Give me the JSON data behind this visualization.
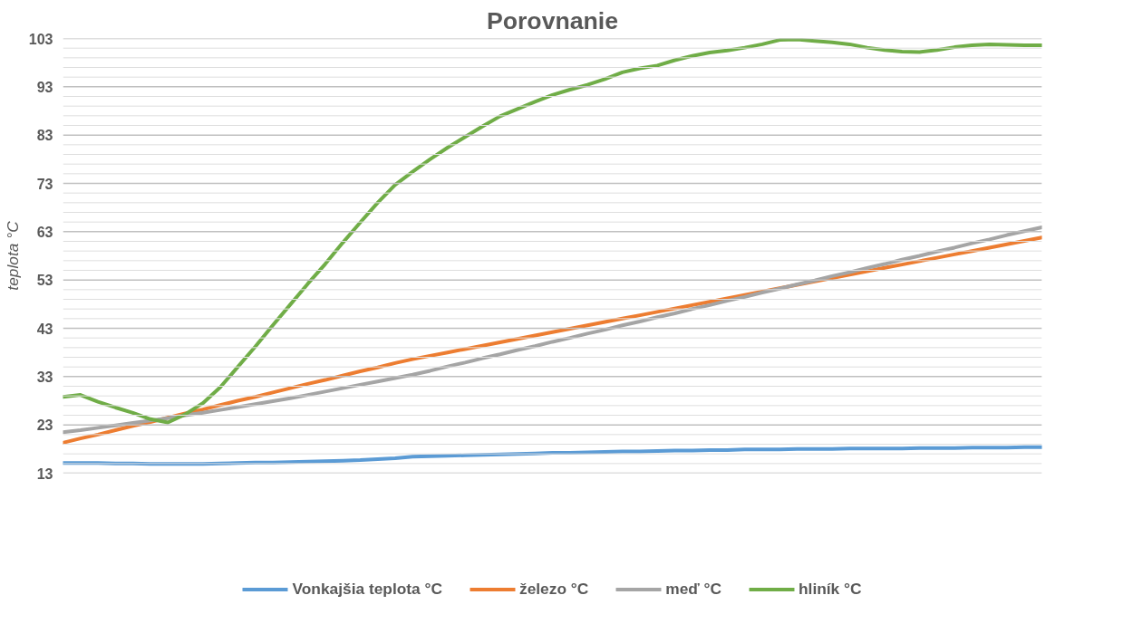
{
  "chart_data": {
    "type": "line",
    "title": "Porovnanie",
    "ylabel": "teplota °C",
    "categories": [
      null,
      null,
      null,
      null,
      null,
      null,
      null,
      null,
      null,
      null,
      null,
      null,
      null,
      null,
      null,
      null,
      null,
      null,
      null,
      null,
      null,
      null,
      null,
      null,
      null,
      null,
      null,
      null,
      null,
      null,
      null,
      null,
      null,
      null,
      null,
      null,
      null,
      null,
      null,
      null,
      null,
      null,
      null,
      null,
      null,
      null,
      null,
      null,
      null,
      null,
      null,
      null,
      null,
      null,
      null,
      null,
      null
    ],
    "series": [
      {
        "name": "Vonkajšia teplota °C",
        "color": "#5b9bd5",
        "values": [
          15.1,
          15.1,
          15.1,
          15.0,
          15.0,
          14.9,
          14.9,
          14.9,
          14.9,
          15.0,
          15.1,
          15.2,
          15.2,
          15.3,
          15.4,
          15.5,
          15.6,
          15.7,
          15.9,
          16.1,
          16.4,
          16.5,
          16.6,
          16.7,
          16.8,
          16.9,
          17.0,
          17.1,
          17.2,
          17.2,
          17.3,
          17.4,
          17.5,
          17.5,
          17.6,
          17.7,
          17.7,
          17.8,
          17.8,
          17.9,
          17.9,
          17.9,
          18.0,
          18.0,
          18.0,
          18.1,
          18.1,
          18.1,
          18.1,
          18.2,
          18.2,
          18.2,
          18.3,
          18.3,
          18.3,
          18.4,
          18.4
        ]
      },
      {
        "name": "železo °C",
        "color": "#ed7d31",
        "values": [
          19.3,
          20.2,
          21.0,
          21.9,
          22.8,
          23.6,
          24.5,
          25.4,
          26.2,
          27.1,
          28.0,
          28.8,
          29.7,
          30.6,
          31.5,
          32.3,
          33.2,
          34.1,
          34.9,
          35.8,
          36.6,
          37.3,
          38.0,
          38.7,
          39.4,
          40.1,
          40.8,
          41.5,
          42.2,
          42.9,
          43.6,
          44.3,
          45.0,
          45.7,
          46.4,
          47.1,
          47.8,
          48.5,
          49.2,
          49.9,
          50.6,
          51.3,
          52.0,
          52.7,
          53.4,
          54.1,
          54.8,
          55.5,
          56.2,
          56.9,
          57.6,
          58.3,
          59.0,
          59.7,
          60.4,
          61.1,
          61.8
        ]
      },
      {
        "name": "meď °C",
        "color": "#a5a5a5",
        "values": [
          21.5,
          21.9,
          22.4,
          22.9,
          23.4,
          23.9,
          24.4,
          25.0,
          25.5,
          26.1,
          26.7,
          27.3,
          27.9,
          28.5,
          29.2,
          29.9,
          30.6,
          31.3,
          32.0,
          32.7,
          33.4,
          34.2,
          35.1,
          35.9,
          36.8,
          37.6,
          38.5,
          39.3,
          40.2,
          41.0,
          41.9,
          42.7,
          43.6,
          44.4,
          45.3,
          46.1,
          47.0,
          47.8,
          48.7,
          49.5,
          50.4,
          51.2,
          52.1,
          52.9,
          53.8,
          54.6,
          55.5,
          56.3,
          57.2,
          58.0,
          58.9,
          59.7,
          60.6,
          61.4,
          62.3,
          63.1,
          63.9
        ]
      },
      {
        "name": "hliník °C",
        "color": "#70ad47",
        "values": [
          28.8,
          29.2,
          27.8,
          26.6,
          25.5,
          24.2,
          23.5,
          25.2,
          27.5,
          30.8,
          35.0,
          39.2,
          43.6,
          47.9,
          52.2,
          56.3,
          60.7,
          64.9,
          69.0,
          72.7,
          75.4,
          78.0,
          80.4,
          82.6,
          84.8,
          86.9,
          88.4,
          89.9,
          91.3,
          92.4,
          93.4,
          94.6,
          96.0,
          96.8,
          97.4,
          98.5,
          99.4,
          100.1,
          100.5,
          101.1,
          101.8,
          102.7,
          102.8,
          102.5,
          102.2,
          101.8,
          101.1,
          100.6,
          100.3,
          100.2,
          100.6,
          101.2,
          101.6,
          101.8,
          101.7,
          101.6,
          101.6
        ]
      }
    ],
    "ylim": [
      13,
      103
    ],
    "yticks": [
      13,
      {
        "value": 15,
        "label": null
      },
      {
        "value": 17,
        "label": null
      },
      {
        "value": 19,
        "label": null
      },
      {
        "value": 21,
        "label": null
      },
      23,
      {
        "value": 25,
        "label": null
      },
      {
        "value": 27,
        "label": null
      },
      {
        "value": 29,
        "label": null
      },
      {
        "value": 31,
        "label": null
      },
      33,
      {
        "value": 35,
        "label": null
      },
      {
        "value": 37,
        "label": null
      },
      {
        "value": 39,
        "label": null
      },
      {
        "value": 41,
        "label": null
      },
      43,
      {
        "value": 45,
        "label": null
      },
      {
        "value": 47,
        "label": null
      },
      {
        "value": 49,
        "label": null
      },
      {
        "value": 51,
        "label": null
      },
      53,
      {
        "value": 55,
        "label": null
      },
      {
        "value": 57,
        "label": null
      },
      {
        "value": 59,
        "label": null
      },
      {
        "value": 61,
        "label": null
      },
      63,
      {
        "value": 65,
        "label": null
      },
      {
        "value": 67,
        "label": null
      },
      {
        "value": 69,
        "label": null
      },
      {
        "value": 71,
        "label": null
      },
      73,
      {
        "value": 75,
        "label": null
      },
      {
        "value": 77,
        "label": null
      },
      {
        "value": 79,
        "label": null
      },
      {
        "value": 81,
        "label": null
      },
      83,
      {
        "value": 85,
        "label": null
      },
      {
        "value": 87,
        "label": null
      },
      {
        "value": 89,
        "label": null
      },
      {
        "value": 91,
        "label": null
      },
      93,
      {
        "value": 95,
        "label": null
      },
      {
        "value": 97,
        "label": null
      },
      {
        "value": 99,
        "label": null
      },
      {
        "value": 101,
        "label": null
      },
      103
    ],
    "grid": "y",
    "legend": "bottom",
    "marker": "none",
    "line_style": "solid"
  }
}
